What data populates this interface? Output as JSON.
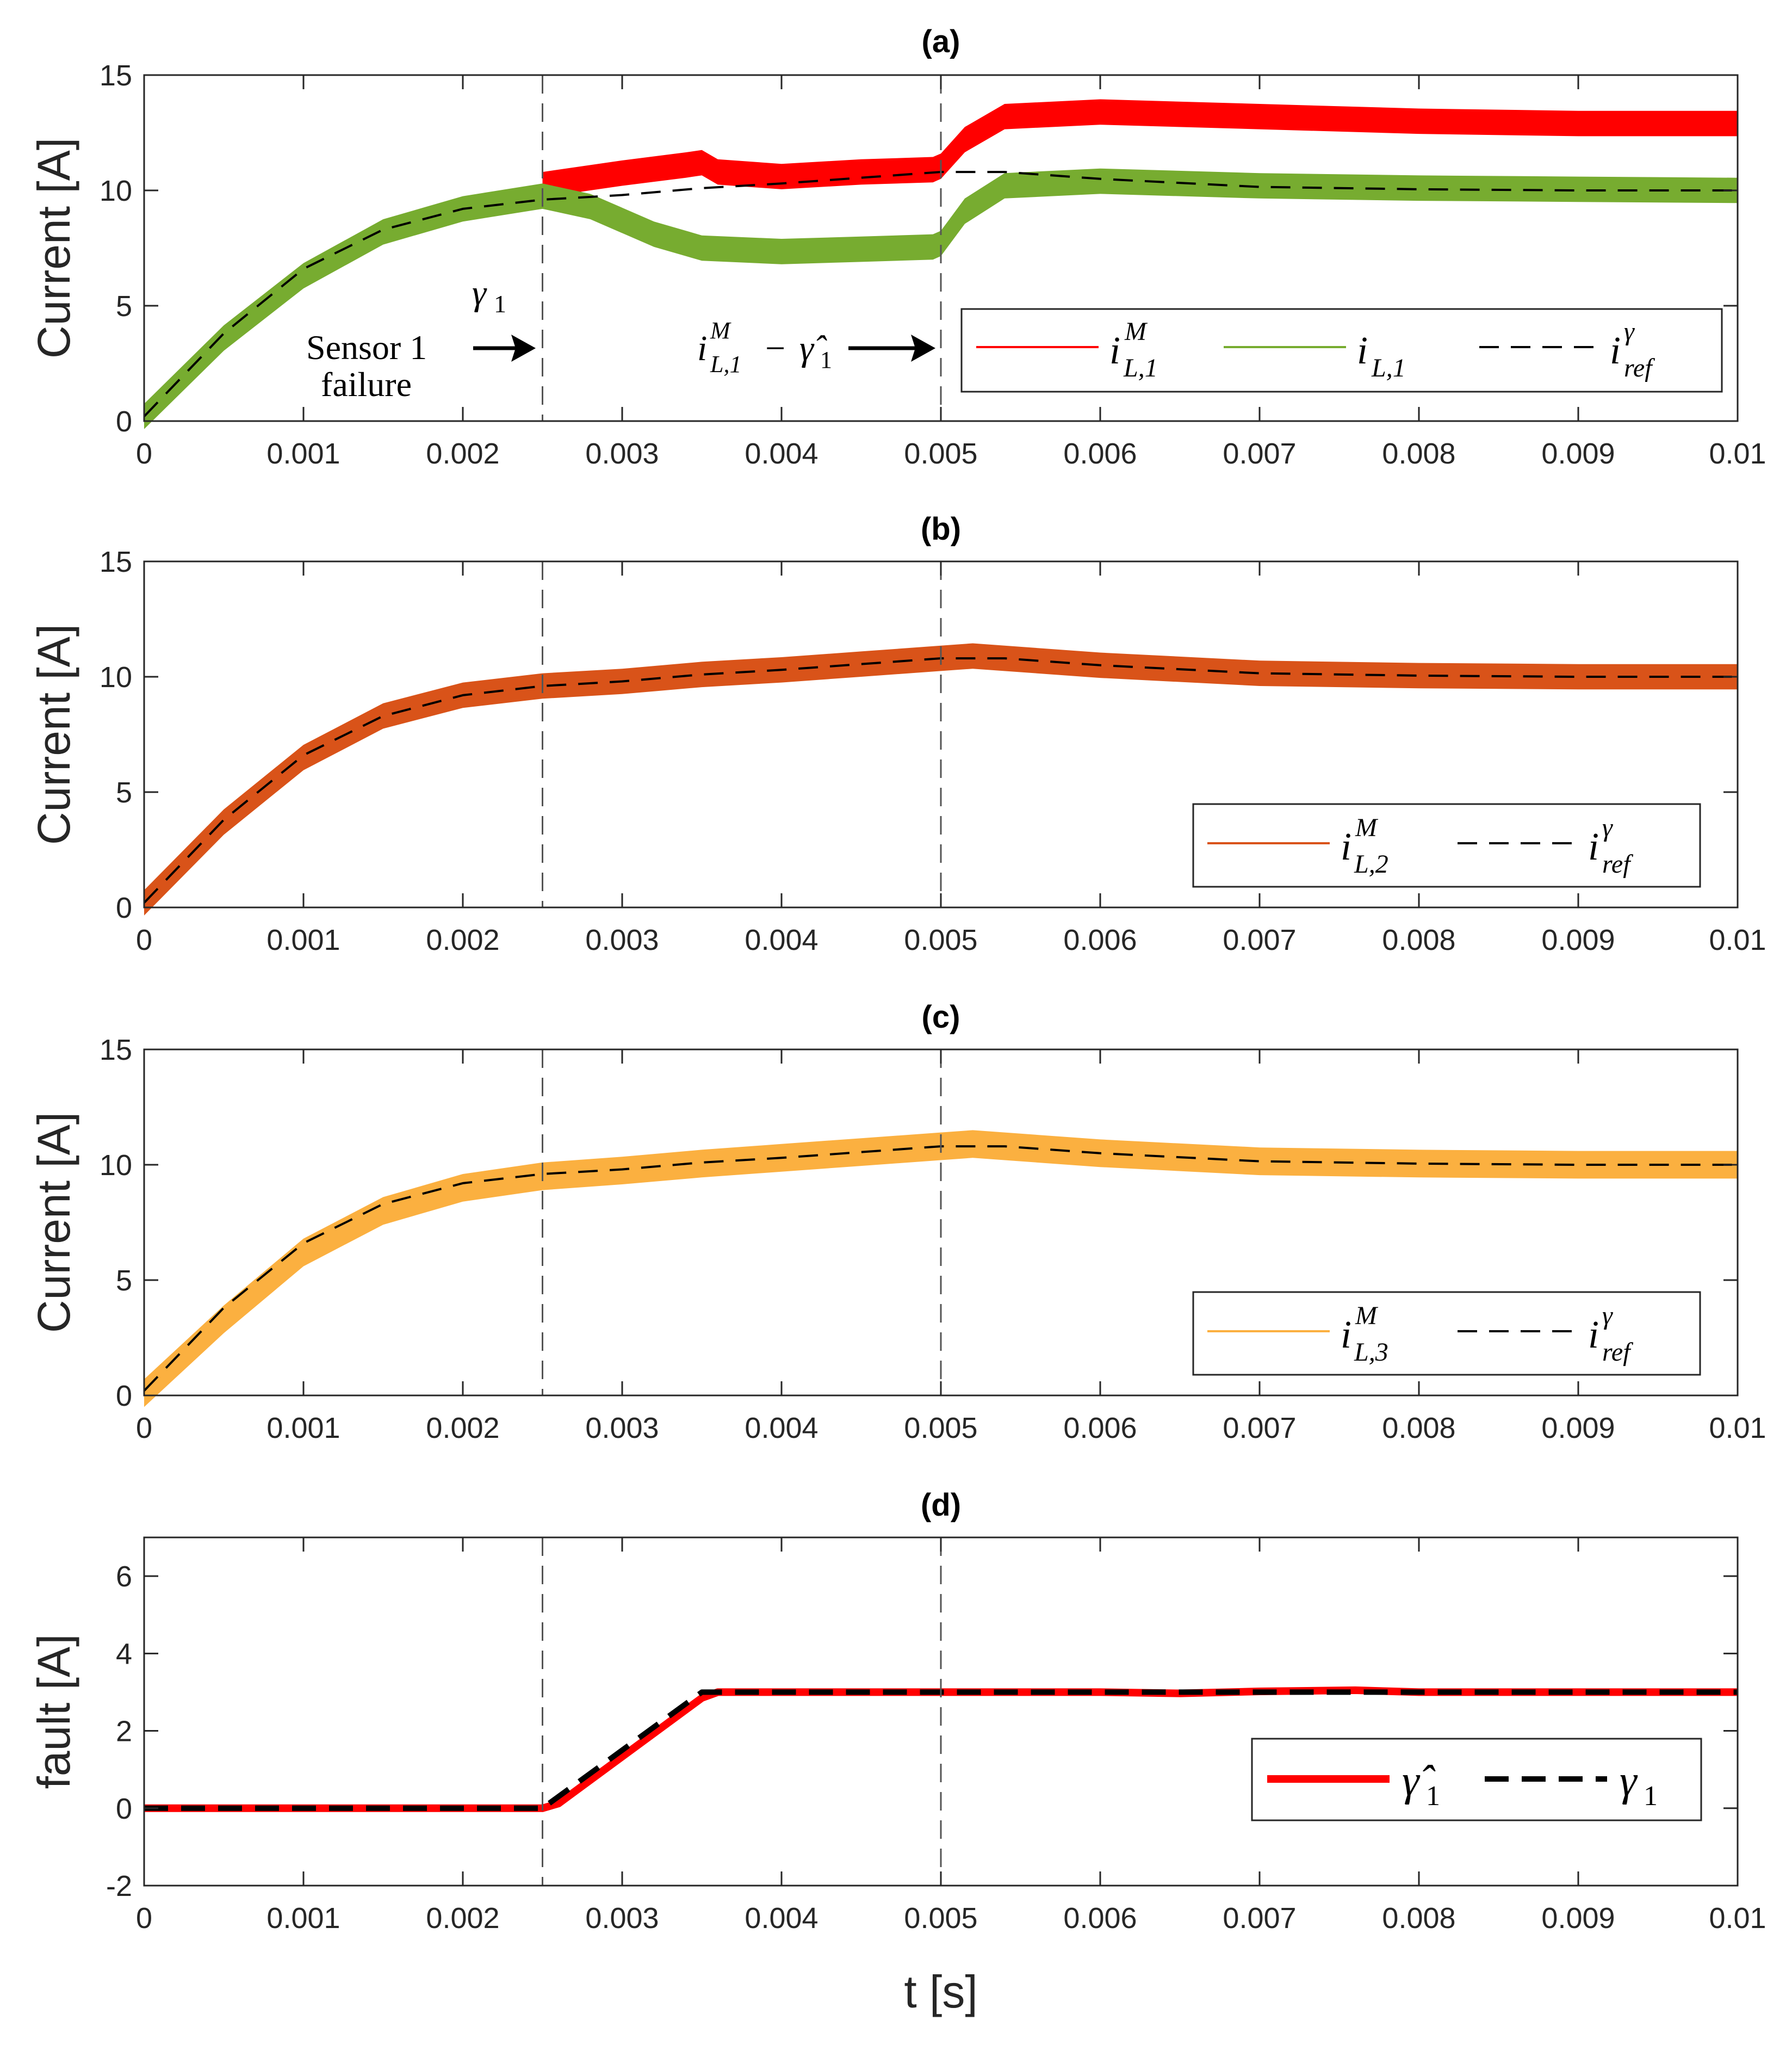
{
  "chart_data": [
    {
      "panel": "a",
      "type": "line",
      "title": "(a)",
      "xlabel": "",
      "ylabel": "Current [A]",
      "xlim": [
        0,
        0.01
      ],
      "ylim": [
        0,
        15
      ],
      "xticks": [
        "0",
        "0.001",
        "0.002",
        "0.003",
        "0.004",
        "0.005",
        "0.006",
        "0.007",
        "0.008",
        "0.009",
        "0.01"
      ],
      "yticks": [
        "0",
        "5",
        "10",
        "15"
      ],
      "event_lines_x": [
        0.0025,
        0.005
      ],
      "annotations": {
        "gamma": "γ",
        "gamma_sub": "1",
        "sensor_line1": "Sensor 1",
        "sensor_line2": "failure",
        "fault_est_main": "i",
        "fault_est_sup": "M",
        "fault_est_sub": "L,1",
        "fault_est_minus": "−",
        "fault_est_gamma": "γ̂",
        "fault_est_gamma_sub": "1"
      },
      "legend": [
        {
          "key": "iM_L1",
          "main": "i",
          "sup": "M",
          "sub": "L,1"
        },
        {
          "key": "i_L1",
          "main": "i",
          "sup": "",
          "sub": "L,1"
        },
        {
          "key": "i_ref",
          "main": "i",
          "sup": "γ",
          "sub": "ref"
        }
      ],
      "series": [
        {
          "key": "iM_L1",
          "color": "#ff0000",
          "band": 0.55,
          "x": [
            0.0025,
            0.003,
            0.0034,
            0.0035,
            0.0036,
            0.004,
            0.0045,
            0.00495,
            0.005,
            0.00515,
            0.0054,
            0.006,
            0.007,
            0.008,
            0.009,
            0.01
          ],
          "y": [
            10.25,
            10.75,
            11.1,
            11.2,
            10.8,
            10.6,
            10.8,
            10.9,
            11.05,
            12.2,
            13.2,
            13.4,
            13.2,
            13.0,
            12.9,
            12.9
          ]
        },
        {
          "key": "i_L1",
          "color": "#77ac30",
          "band": 0.55,
          "x": [
            0,
            0.0005,
            0.001,
            0.0015,
            0.002,
            0.0025,
            0.0028,
            0.0032,
            0.0035,
            0.004,
            0.0045,
            0.00495,
            0.005,
            0.00515,
            0.0054,
            0.006,
            0.007,
            0.008,
            0.009,
            0.01
          ],
          "y": [
            0.2,
            3.6,
            6.3,
            8.2,
            9.2,
            9.75,
            9.3,
            8.1,
            7.5,
            7.35,
            7.45,
            7.55,
            7.7,
            9.1,
            10.2,
            10.4,
            10.2,
            10.1,
            10.05,
            10.0
          ]
        },
        {
          "key": "i_ref",
          "color": "#000000",
          "dashed": true,
          "x": [
            0,
            0.0005,
            0.001,
            0.0015,
            0.002,
            0.0025,
            0.003,
            0.0035,
            0.004,
            0.0045,
            0.005,
            0.0054,
            0.006,
            0.007,
            0.008,
            0.009,
            0.01
          ],
          "y": [
            0.2,
            3.8,
            6.6,
            8.3,
            9.2,
            9.6,
            9.8,
            10.1,
            10.3,
            10.55,
            10.8,
            10.8,
            10.5,
            10.15,
            10.05,
            10.0,
            10.0
          ]
        }
      ]
    },
    {
      "panel": "b",
      "type": "line",
      "title": "(b)",
      "xlabel": "",
      "ylabel": "Current [A]",
      "xlim": [
        0,
        0.01
      ],
      "ylim": [
        0,
        15
      ],
      "xticks": [
        "0",
        "0.001",
        "0.002",
        "0.003",
        "0.004",
        "0.005",
        "0.006",
        "0.007",
        "0.008",
        "0.009",
        "0.01"
      ],
      "yticks": [
        "0",
        "5",
        "10",
        "15"
      ],
      "event_lines_x": [
        0.0025,
        0.005
      ],
      "legend": [
        {
          "key": "iM_L2",
          "main": "i",
          "sup": "M",
          "sub": "L,2"
        },
        {
          "key": "i_ref",
          "main": "i",
          "sup": "γ",
          "sub": "ref"
        }
      ],
      "series": [
        {
          "key": "iM_L2",
          "color": "#d95319",
          "band": 0.55,
          "x": [
            0,
            0.0005,
            0.001,
            0.0015,
            0.002,
            0.0025,
            0.003,
            0.0035,
            0.004,
            0.0045,
            0.005,
            0.0052,
            0.006,
            0.007,
            0.008,
            0.009,
            0.01
          ],
          "y": [
            0.2,
            3.7,
            6.5,
            8.3,
            9.2,
            9.6,
            9.8,
            10.1,
            10.3,
            10.55,
            10.8,
            10.9,
            10.5,
            10.15,
            10.05,
            10.0,
            10.0
          ]
        },
        {
          "key": "i_ref",
          "color": "#000000",
          "dashed": true,
          "x": [
            0,
            0.0005,
            0.001,
            0.0015,
            0.002,
            0.0025,
            0.003,
            0.0035,
            0.004,
            0.0045,
            0.005,
            0.0054,
            0.006,
            0.007,
            0.008,
            0.009,
            0.01
          ],
          "y": [
            0.2,
            3.8,
            6.6,
            8.3,
            9.2,
            9.6,
            9.8,
            10.1,
            10.3,
            10.55,
            10.8,
            10.8,
            10.5,
            10.15,
            10.05,
            10.0,
            10.0
          ]
        }
      ]
    },
    {
      "panel": "c",
      "type": "line",
      "title": "(c)",
      "xlabel": "",
      "ylabel": "Current [A]",
      "xlim": [
        0,
        0.01
      ],
      "ylim": [
        0,
        15
      ],
      "xticks": [
        "0",
        "0.001",
        "0.002",
        "0.003",
        "0.004",
        "0.005",
        "0.006",
        "0.007",
        "0.008",
        "0.009",
        "0.01"
      ],
      "yticks": [
        "0",
        "5",
        "10",
        "15"
      ],
      "event_lines_x": [
        0.0025,
        0.005
      ],
      "legend": [
        {
          "key": "iM_L3",
          "main": "i",
          "sup": "M",
          "sub": "L,3"
        },
        {
          "key": "i_ref",
          "main": "i",
          "sup": "γ",
          "sub": "ref"
        }
      ],
      "series": [
        {
          "key": "iM_L3",
          "color": "#fbb040",
          "band": 0.6,
          "x": [
            0,
            0.0005,
            0.001,
            0.0015,
            0.002,
            0.0025,
            0.003,
            0.0035,
            0.004,
            0.0045,
            0.005,
            0.0052,
            0.006,
            0.007,
            0.008,
            0.009,
            0.01
          ],
          "y": [
            0.1,
            3.3,
            6.2,
            8.0,
            9.0,
            9.5,
            9.75,
            10.05,
            10.3,
            10.55,
            10.8,
            10.9,
            10.5,
            10.15,
            10.05,
            10.0,
            10.0
          ]
        },
        {
          "key": "i_ref",
          "color": "#000000",
          "dashed": true,
          "x": [
            0,
            0.0005,
            0.001,
            0.0015,
            0.002,
            0.0025,
            0.003,
            0.0035,
            0.004,
            0.0045,
            0.005,
            0.0054,
            0.006,
            0.007,
            0.008,
            0.009,
            0.01
          ],
          "y": [
            0.2,
            3.8,
            6.6,
            8.3,
            9.2,
            9.6,
            9.8,
            10.1,
            10.3,
            10.55,
            10.8,
            10.8,
            10.5,
            10.15,
            10.05,
            10.0,
            10.0
          ]
        }
      ]
    },
    {
      "panel": "d",
      "type": "line",
      "title": "(d)",
      "xlabel": "t [s]",
      "ylabel": "fault [A]",
      "xlim": [
        0,
        0.01
      ],
      "ylim": [
        -2,
        7
      ],
      "xticks": [
        "0",
        "0.001",
        "0.002",
        "0.003",
        "0.004",
        "0.005",
        "0.006",
        "0.007",
        "0.008",
        "0.009",
        "0.01"
      ],
      "yticks": [
        "-2",
        "0",
        "2",
        "4",
        "6"
      ],
      "event_lines_x": [
        0.0025,
        0.005
      ],
      "legend": [
        {
          "key": "gamma_hat",
          "main": "γ̂",
          "sup": "",
          "sub": "1"
        },
        {
          "key": "gamma",
          "main": "γ",
          "sup": "",
          "sub": "1"
        }
      ],
      "series": [
        {
          "key": "gamma_hat",
          "color": "#ff0000",
          "width": 14,
          "x": [
            0,
            0.0025,
            0.0026,
            0.0035,
            0.0036,
            0.006,
            0.0065,
            0.007,
            0.0076,
            0.008,
            0.009,
            0.01
          ],
          "y": [
            0,
            0,
            0.12,
            2.85,
            3.0,
            3.0,
            2.97,
            3.02,
            3.05,
            3.0,
            3.0,
            3.0
          ]
        },
        {
          "key": "gamma",
          "color": "#000000",
          "dashed": true,
          "width": 10,
          "x": [
            0,
            0.0025,
            0.0035,
            0.01
          ],
          "y": [
            0,
            0,
            3.0,
            3.0
          ]
        }
      ]
    }
  ]
}
